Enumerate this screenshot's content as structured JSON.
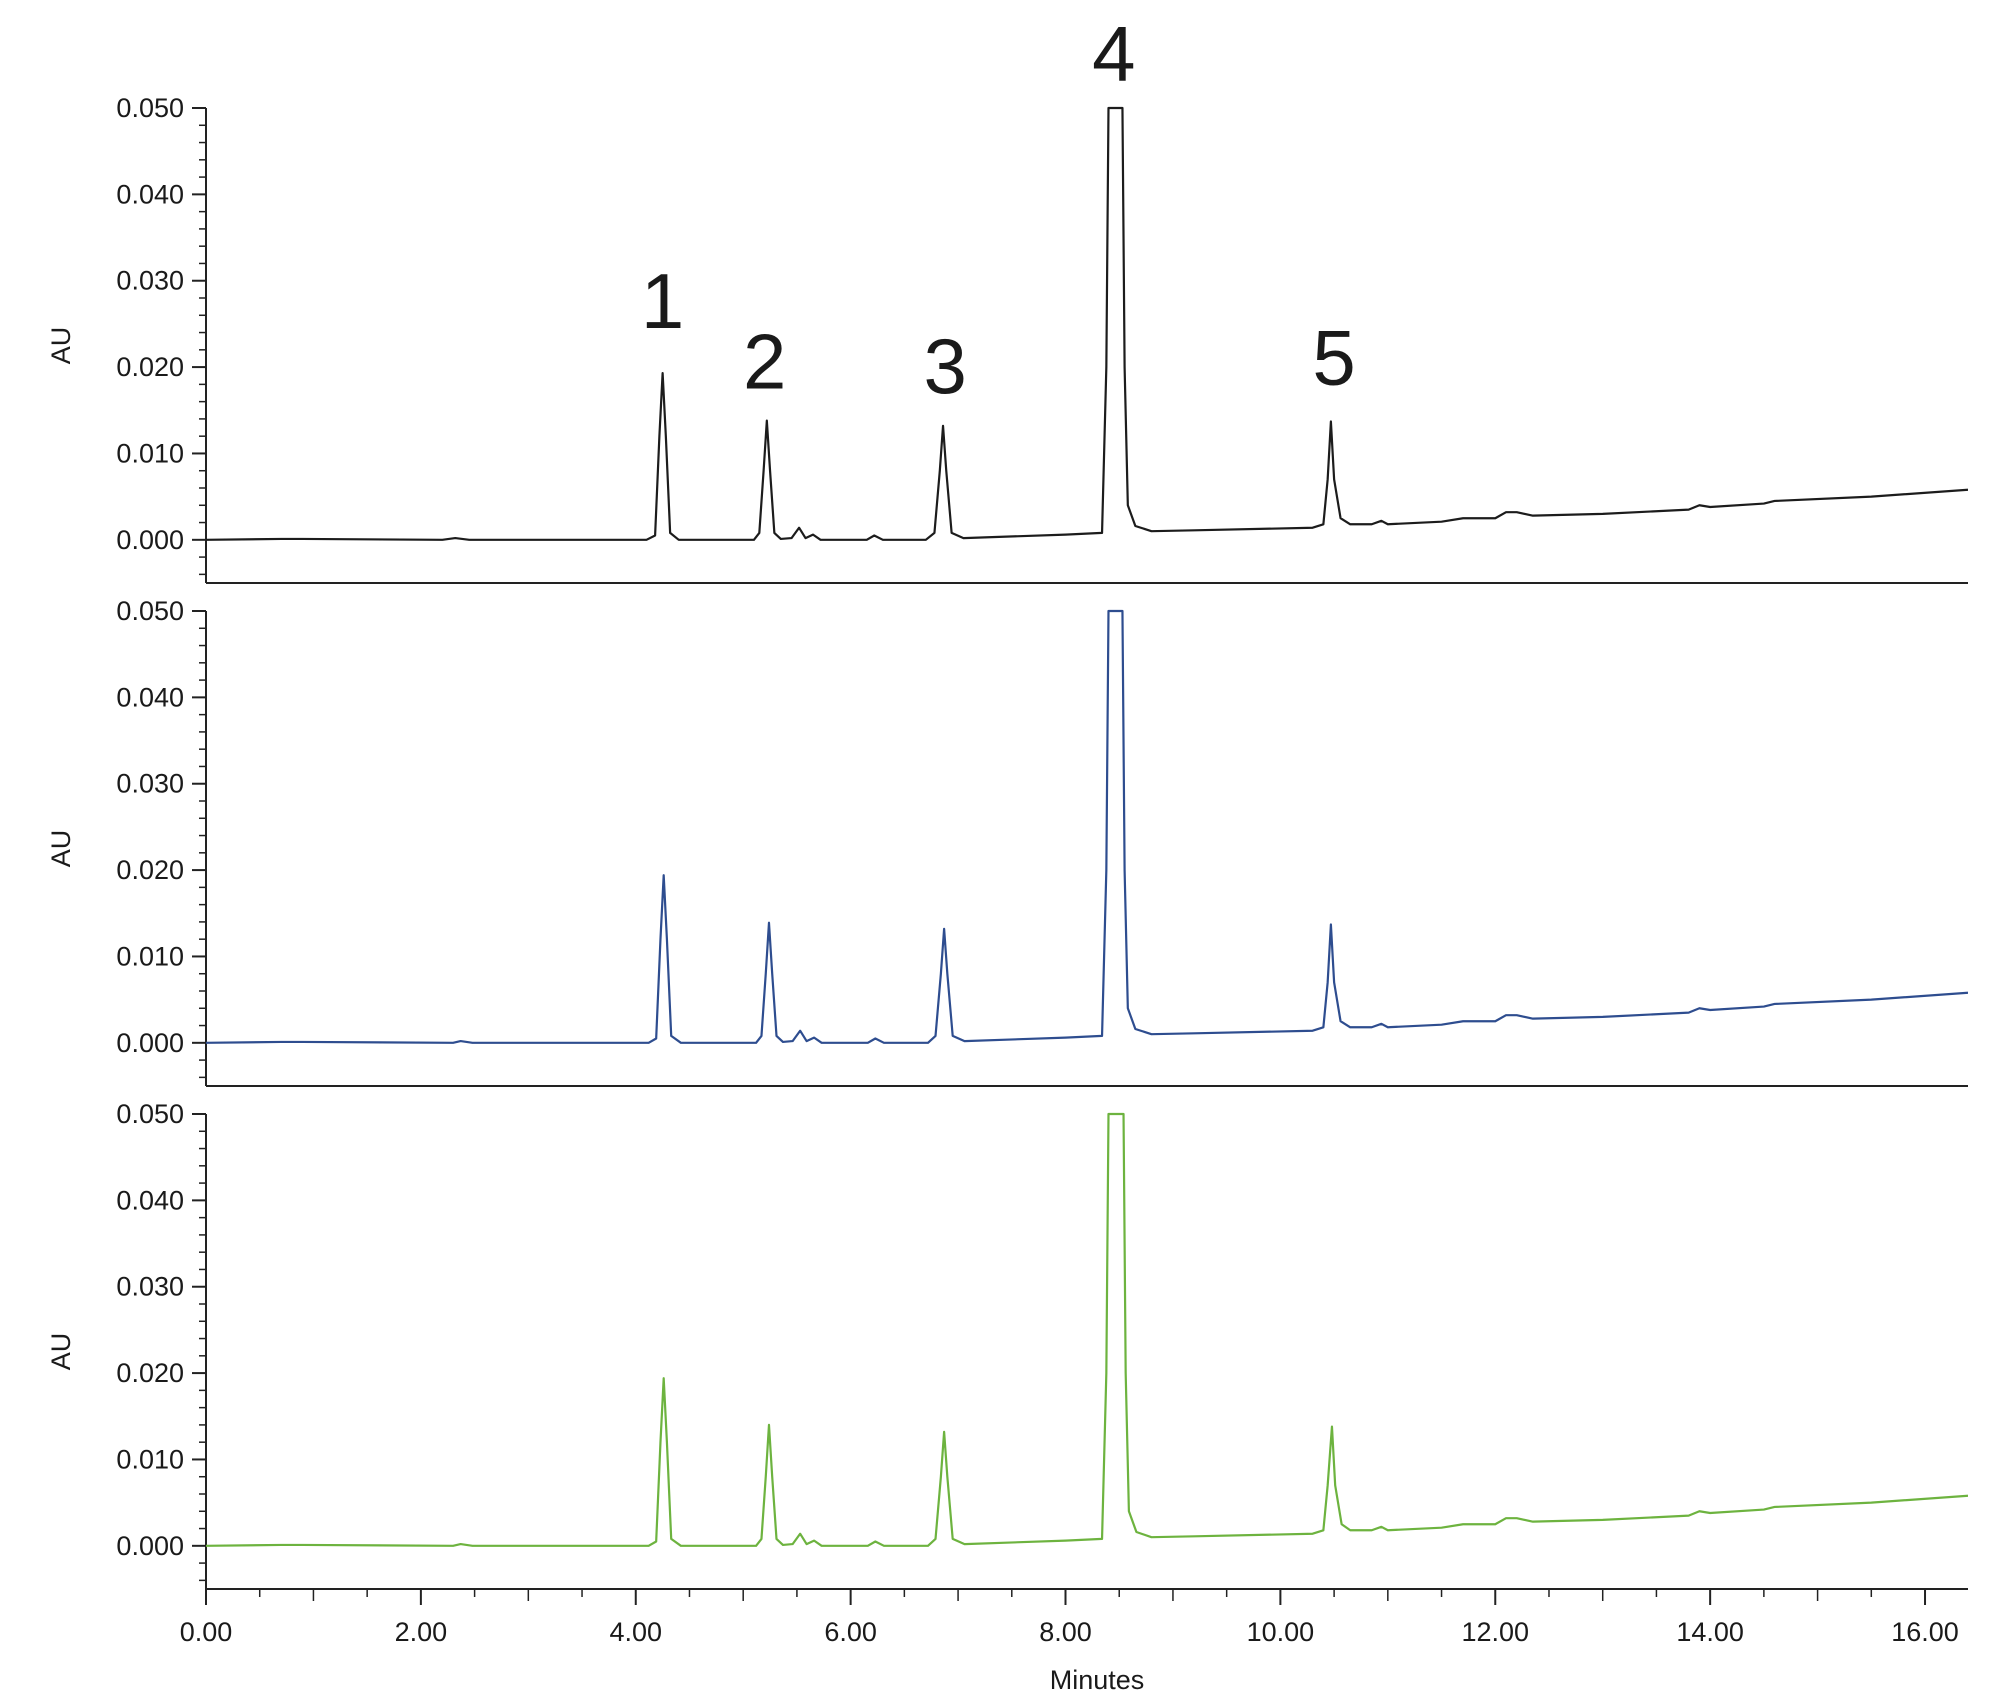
{
  "chart_data": [
    {
      "type": "line",
      "xlabel": "",
      "ylabel": "AU",
      "xlim": [
        0,
        16.4
      ],
      "ylim": [
        -0.005,
        0.05
      ],
      "yticks": [
        "0.000",
        "0.010",
        "0.020",
        "0.030",
        "0.040",
        "0.050"
      ],
      "line_color": "#1c1c1c",
      "peak_labels": [
        {
          "text": "1",
          "x": 4.25,
          "y": 0.0245
        },
        {
          "text": "2",
          "x": 5.2,
          "y": 0.0175
        },
        {
          "text": "3",
          "x": 6.88,
          "y": 0.017
        },
        {
          "text": "4",
          "x": 8.45,
          "y": 0.0532
        },
        {
          "text": "5",
          "x": 10.5,
          "y": 0.018
        }
      ],
      "series": [
        {
          "values": [
            [
              0,
              0
            ],
            [
              0.7,
              0.0001
            ],
            [
              0.9,
              0.0001
            ],
            [
              2.2,
              0
            ],
            [
              2.32,
              0.0002
            ],
            [
              2.45,
              0
            ],
            [
              4.1,
              0
            ],
            [
              4.18,
              0.0005
            ],
            [
              4.22,
              0.012
            ],
            [
              4.25,
              0.0193
            ],
            [
              4.28,
              0.012
            ],
            [
              4.32,
              0.0008
            ],
            [
              4.4,
              0
            ],
            [
              5.1,
              0
            ],
            [
              5.15,
              0.0008
            ],
            [
              5.19,
              0.008
            ],
            [
              5.22,
              0.0138
            ],
            [
              5.25,
              0.008
            ],
            [
              5.29,
              0.0008
            ],
            [
              5.35,
              0.0001
            ],
            [
              5.45,
              0.0002
            ],
            [
              5.52,
              0.0014
            ],
            [
              5.58,
              0.0002
            ],
            [
              5.65,
              0.0006
            ],
            [
              5.72,
              0
            ],
            [
              6.15,
              0
            ],
            [
              6.22,
              0.0005
            ],
            [
              6.3,
              0
            ],
            [
              6.7,
              0
            ],
            [
              6.78,
              0.0008
            ],
            [
              6.83,
              0.008
            ],
            [
              6.86,
              0.0132
            ],
            [
              6.89,
              0.008
            ],
            [
              6.94,
              0.0008
            ],
            [
              7.05,
              0.0002
            ],
            [
              8.0,
              0.0006
            ],
            [
              8.34,
              0.0008
            ],
            [
              8.38,
              0.02
            ],
            [
              8.4,
              0.05
            ],
            [
              8.53,
              0.05
            ],
            [
              8.55,
              0.02
            ],
            [
              8.58,
              0.004
            ],
            [
              8.65,
              0.0016
            ],
            [
              8.8,
              0.001
            ],
            [
              9.2,
              0.0011
            ],
            [
              10.3,
              0.0014
            ],
            [
              10.4,
              0.0018
            ],
            [
              10.44,
              0.007
            ],
            [
              10.47,
              0.0137
            ],
            [
              10.5,
              0.007
            ],
            [
              10.56,
              0.0025
            ],
            [
              10.65,
              0.0018
            ],
            [
              10.85,
              0.0018
            ],
            [
              10.94,
              0.0022
            ],
            [
              11.0,
              0.0018
            ],
            [
              11.5,
              0.0021
            ],
            [
              11.7,
              0.0025
            ],
            [
              12.0,
              0.0025
            ],
            [
              12.1,
              0.0032
            ],
            [
              12.2,
              0.0032
            ],
            [
              12.35,
              0.0028
            ],
            [
              13.0,
              0.003
            ],
            [
              13.8,
              0.0035
            ],
            [
              13.9,
              0.004
            ],
            [
              14.0,
              0.0038
            ],
            [
              14.5,
              0.0042
            ],
            [
              14.6,
              0.0045
            ],
            [
              15.5,
              0.005
            ],
            [
              16.4,
              0.0058
            ]
          ]
        }
      ]
    },
    {
      "type": "line",
      "xlabel": "",
      "ylabel": "AU",
      "xlim": [
        0,
        16.4
      ],
      "ylim": [
        -0.005,
        0.05
      ],
      "yticks": [
        "0.000",
        "0.010",
        "0.020",
        "0.030",
        "0.040",
        "0.050"
      ],
      "line_color": "#2e4d8f",
      "series": [
        {
          "values": [
            [
              0,
              0
            ],
            [
              0.7,
              0.0001
            ],
            [
              0.9,
              0.0001
            ],
            [
              2.3,
              0
            ],
            [
              2.37,
              0.0002
            ],
            [
              2.48,
              0
            ],
            [
              4.12,
              0
            ],
            [
              4.19,
              0.0005
            ],
            [
              4.23,
              0.012
            ],
            [
              4.26,
              0.0194
            ],
            [
              4.29,
              0.012
            ],
            [
              4.33,
              0.0008
            ],
            [
              4.42,
              0
            ],
            [
              5.12,
              0
            ],
            [
              5.17,
              0.0008
            ],
            [
              5.21,
              0.008
            ],
            [
              5.24,
              0.0139
            ],
            [
              5.27,
              0.008
            ],
            [
              5.31,
              0.0008
            ],
            [
              5.37,
              0.0001
            ],
            [
              5.46,
              0.0002
            ],
            [
              5.53,
              0.0014
            ],
            [
              5.59,
              0.0002
            ],
            [
              5.66,
              0.0006
            ],
            [
              5.73,
              0
            ],
            [
              6.16,
              0
            ],
            [
              6.23,
              0.0005
            ],
            [
              6.31,
              0
            ],
            [
              6.72,
              0
            ],
            [
              6.79,
              0.0008
            ],
            [
              6.84,
              0.008
            ],
            [
              6.87,
              0.0132
            ],
            [
              6.9,
              0.008
            ],
            [
              6.95,
              0.0008
            ],
            [
              7.06,
              0.0002
            ],
            [
              8.0,
              0.0006
            ],
            [
              8.34,
              0.0008
            ],
            [
              8.38,
              0.02
            ],
            [
              8.4,
              0.05
            ],
            [
              8.53,
              0.05
            ],
            [
              8.55,
              0.02
            ],
            [
              8.58,
              0.004
            ],
            [
              8.65,
              0.0016
            ],
            [
              8.8,
              0.001
            ],
            [
              9.2,
              0.0011
            ],
            [
              10.3,
              0.0014
            ],
            [
              10.4,
              0.0018
            ],
            [
              10.44,
              0.007
            ],
            [
              10.47,
              0.0137
            ],
            [
              10.5,
              0.007
            ],
            [
              10.56,
              0.0025
            ],
            [
              10.65,
              0.0018
            ],
            [
              10.85,
              0.0018
            ],
            [
              10.94,
              0.0022
            ],
            [
              11.0,
              0.0018
            ],
            [
              11.5,
              0.0021
            ],
            [
              11.7,
              0.0025
            ],
            [
              12.0,
              0.0025
            ],
            [
              12.1,
              0.0032
            ],
            [
              12.2,
              0.0032
            ],
            [
              12.35,
              0.0028
            ],
            [
              13.0,
              0.003
            ],
            [
              13.8,
              0.0035
            ],
            [
              13.9,
              0.004
            ],
            [
              14.0,
              0.0038
            ],
            [
              14.5,
              0.0042
            ],
            [
              14.6,
              0.0045
            ],
            [
              15.5,
              0.005
            ],
            [
              16.4,
              0.0058
            ]
          ]
        }
      ]
    },
    {
      "type": "line",
      "xlabel": "Minutes",
      "ylabel": "AU",
      "xlim": [
        0,
        16.4
      ],
      "ylim": [
        -0.005,
        0.05
      ],
      "yticks": [
        "0.000",
        "0.010",
        "0.020",
        "0.030",
        "0.040",
        "0.050"
      ],
      "xticks": [
        "0.00",
        "2.00",
        "4.00",
        "6.00",
        "8.00",
        "10.00",
        "12.00",
        "14.00",
        "16.00"
      ],
      "line_color": "#6db33f",
      "series": [
        {
          "values": [
            [
              0,
              0
            ],
            [
              0.7,
              0.0001
            ],
            [
              0.9,
              0.0001
            ],
            [
              2.3,
              0
            ],
            [
              2.37,
              0.0002
            ],
            [
              2.48,
              0
            ],
            [
              4.12,
              0
            ],
            [
              4.19,
              0.0005
            ],
            [
              4.23,
              0.012
            ],
            [
              4.26,
              0.0194
            ],
            [
              4.29,
              0.012
            ],
            [
              4.33,
              0.0008
            ],
            [
              4.42,
              0
            ],
            [
              5.12,
              0
            ],
            [
              5.17,
              0.0008
            ],
            [
              5.21,
              0.008
            ],
            [
              5.24,
              0.014
            ],
            [
              5.27,
              0.008
            ],
            [
              5.31,
              0.0008
            ],
            [
              5.37,
              0.0001
            ],
            [
              5.46,
              0.0002
            ],
            [
              5.53,
              0.0014
            ],
            [
              5.59,
              0.0002
            ],
            [
              5.66,
              0.0006
            ],
            [
              5.73,
              0
            ],
            [
              6.16,
              0
            ],
            [
              6.23,
              0.0005
            ],
            [
              6.31,
              0
            ],
            [
              6.72,
              0
            ],
            [
              6.79,
              0.0008
            ],
            [
              6.84,
              0.008
            ],
            [
              6.87,
              0.0132
            ],
            [
              6.9,
              0.008
            ],
            [
              6.95,
              0.0008
            ],
            [
              7.06,
              0.0002
            ],
            [
              8.0,
              0.0006
            ],
            [
              8.34,
              0.0008
            ],
            [
              8.38,
              0.02
            ],
            [
              8.4,
              0.05
            ],
            [
              8.54,
              0.05
            ],
            [
              8.56,
              0.02
            ],
            [
              8.59,
              0.004
            ],
            [
              8.66,
              0.0016
            ],
            [
              8.8,
              0.001
            ],
            [
              9.2,
              0.0011
            ],
            [
              10.3,
              0.0014
            ],
            [
              10.4,
              0.0018
            ],
            [
              10.44,
              0.007
            ],
            [
              10.48,
              0.0138
            ],
            [
              10.51,
              0.007
            ],
            [
              10.57,
              0.0025
            ],
            [
              10.65,
              0.0018
            ],
            [
              10.85,
              0.0018
            ],
            [
              10.94,
              0.0022
            ],
            [
              11.0,
              0.0018
            ],
            [
              11.5,
              0.0021
            ],
            [
              11.7,
              0.0025
            ],
            [
              12.0,
              0.0025
            ],
            [
              12.1,
              0.0032
            ],
            [
              12.2,
              0.0032
            ],
            [
              12.35,
              0.0028
            ],
            [
              13.0,
              0.003
            ],
            [
              13.8,
              0.0035
            ],
            [
              13.9,
              0.004
            ],
            [
              14.0,
              0.0038
            ],
            [
              14.5,
              0.0042
            ],
            [
              14.6,
              0.0045
            ],
            [
              15.5,
              0.005
            ],
            [
              16.4,
              0.0058
            ]
          ]
        }
      ]
    }
  ]
}
